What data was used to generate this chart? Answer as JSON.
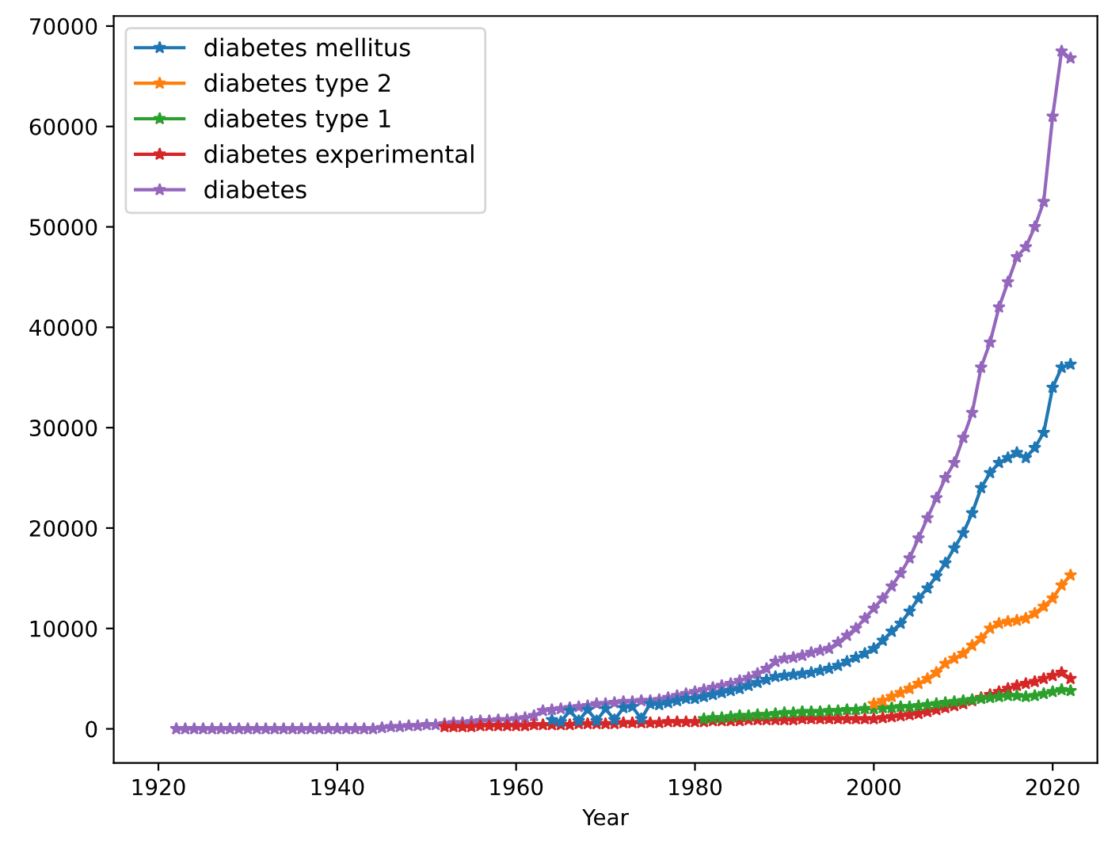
{
  "chart_data": {
    "type": "line",
    "xlabel": "Year",
    "marker": "star",
    "legend": "top left",
    "grid": false,
    "xlim": [
      1915,
      2025
    ],
    "xticks": [
      1920,
      1940,
      1960,
      1980,
      2000,
      2020
    ],
    "ylim": [
      -3400,
      71000
    ],
    "yticks": [
      0,
      10000,
      20000,
      30000,
      40000,
      50000,
      60000,
      70000
    ],
    "x": [
      1922,
      1923,
      1924,
      1925,
      1926,
      1927,
      1928,
      1929,
      1930,
      1931,
      1932,
      1933,
      1934,
      1935,
      1936,
      1937,
      1938,
      1939,
      1940,
      1941,
      1942,
      1943,
      1944,
      1945,
      1946,
      1947,
      1948,
      1949,
      1950,
      1951,
      1952,
      1953,
      1954,
      1955,
      1956,
      1957,
      1958,
      1959,
      1960,
      1961,
      1962,
      1963,
      1964,
      1965,
      1966,
      1967,
      1968,
      1969,
      1970,
      1971,
      1972,
      1973,
      1974,
      1975,
      1976,
      1977,
      1978,
      1979,
      1980,
      1981,
      1982,
      1983,
      1984,
      1985,
      1986,
      1987,
      1988,
      1989,
      1990,
      1991,
      1992,
      1993,
      1994,
      1995,
      1996,
      1997,
      1998,
      1999,
      2000,
      2001,
      2002,
      2003,
      2004,
      2005,
      2006,
      2007,
      2008,
      2009,
      2010,
      2011,
      2012,
      2013,
      2014,
      2015,
      2016,
      2017,
      2018,
      2019,
      2020,
      2021,
      2022
    ],
    "series": [
      {
        "name": "diabetes mellitus",
        "color": "#1f77b4",
        "values": [
          null,
          null,
          null,
          null,
          null,
          null,
          null,
          null,
          null,
          null,
          null,
          null,
          null,
          null,
          null,
          null,
          null,
          null,
          null,
          null,
          null,
          null,
          null,
          null,
          null,
          null,
          null,
          null,
          null,
          null,
          null,
          null,
          null,
          null,
          null,
          null,
          null,
          null,
          null,
          null,
          null,
          null,
          900,
          700,
          1800,
          800,
          1900,
          800,
          2000,
          900,
          2100,
          2200,
          1000,
          2500,
          2400,
          2600,
          2800,
          3000,
          3000,
          3200,
          3400,
          3600,
          3800,
          4000,
          4300,
          4600,
          4900,
          5200,
          5300,
          5400,
          5500,
          5600,
          5800,
          6000,
          6300,
          6700,
          7100,
          7500,
          8000,
          8800,
          9700,
          10500,
          11700,
          13000,
          14000,
          15200,
          16500,
          18000,
          19500,
          21500,
          24000,
          25500,
          26500,
          27000,
          27500,
          27000,
          28000,
          29500,
          34000,
          36000,
          36300
        ]
      },
      {
        "name": "diabetes type 2",
        "color": "#ff7f0e",
        "values": [
          null,
          null,
          null,
          null,
          null,
          null,
          null,
          null,
          null,
          null,
          null,
          null,
          null,
          null,
          null,
          null,
          null,
          null,
          null,
          null,
          null,
          null,
          null,
          null,
          null,
          null,
          null,
          null,
          null,
          null,
          null,
          null,
          null,
          null,
          null,
          null,
          null,
          null,
          null,
          null,
          null,
          null,
          null,
          null,
          null,
          null,
          null,
          null,
          null,
          null,
          null,
          null,
          null,
          null,
          null,
          null,
          null,
          null,
          null,
          null,
          null,
          null,
          null,
          null,
          null,
          null,
          null,
          null,
          null,
          null,
          null,
          null,
          null,
          null,
          null,
          null,
          null,
          null,
          2500,
          2800,
          3200,
          3600,
          4000,
          4500,
          5000,
          5600,
          6500,
          7000,
          7500,
          8300,
          9000,
          10000,
          10500,
          10700,
          10800,
          11000,
          11500,
          12200,
          13000,
          14300,
          15300
        ]
      },
      {
        "name": "diabetes type 1",
        "color": "#2ca02c",
        "values": [
          null,
          null,
          null,
          null,
          null,
          null,
          null,
          null,
          null,
          null,
          null,
          null,
          null,
          null,
          null,
          null,
          null,
          null,
          null,
          null,
          null,
          null,
          null,
          null,
          null,
          null,
          null,
          null,
          null,
          null,
          null,
          null,
          null,
          null,
          null,
          null,
          null,
          null,
          null,
          null,
          null,
          null,
          null,
          null,
          null,
          null,
          null,
          null,
          null,
          null,
          null,
          null,
          null,
          null,
          null,
          null,
          null,
          null,
          null,
          1000,
          1100,
          1100,
          1200,
          1300,
          1300,
          1400,
          1400,
          1500,
          1600,
          1600,
          1700,
          1700,
          1700,
          1800,
          1800,
          1900,
          1900,
          2000,
          2000,
          2100,
          2100,
          2200,
          2200,
          2300,
          2400,
          2500,
          2600,
          2700,
          2800,
          2900,
          3000,
          3100,
          3200,
          3300,
          3300,
          3200,
          3300,
          3500,
          3700,
          3900,
          3800
        ]
      },
      {
        "name": "diabetes experimental",
        "color": "#d62728",
        "values": [
          null,
          null,
          null,
          null,
          null,
          null,
          null,
          null,
          null,
          null,
          null,
          null,
          null,
          null,
          null,
          null,
          null,
          null,
          null,
          null,
          null,
          null,
          null,
          null,
          null,
          null,
          null,
          null,
          null,
          null,
          200,
          200,
          200,
          200,
          300,
          300,
          300,
          300,
          300,
          300,
          400,
          400,
          400,
          400,
          400,
          500,
          500,
          500,
          500,
          500,
          600,
          600,
          600,
          600,
          600,
          700,
          700,
          700,
          700,
          700,
          800,
          800,
          800,
          800,
          900,
          900,
          900,
          900,
          900,
          900,
          1000,
          1000,
          1000,
          1000,
          1000,
          1000,
          1000,
          1000,
          1000,
          1100,
          1200,
          1300,
          1400,
          1500,
          1700,
          1900,
          2100,
          2300,
          2500,
          2800,
          3100,
          3400,
          3700,
          4000,
          4300,
          4500,
          4700,
          5000,
          5300,
          5600,
          5000
        ]
      },
      {
        "name": "diabetes",
        "color": "#9467bd",
        "values": [
          0,
          0,
          0,
          0,
          0,
          0,
          0,
          0,
          0,
          0,
          0,
          0,
          0,
          0,
          0,
          0,
          0,
          0,
          0,
          0,
          0,
          0,
          0,
          100,
          200,
          200,
          300,
          300,
          400,
          400,
          500,
          600,
          600,
          700,
          800,
          800,
          900,
          900,
          1000,
          1100,
          1300,
          1800,
          1900,
          2000,
          2100,
          2200,
          2300,
          2500,
          2500,
          2600,
          2700,
          2700,
          2800,
          2800,
          2900,
          3100,
          3300,
          3500,
          3700,
          3900,
          4100,
          4300,
          4500,
          4800,
          5100,
          5500,
          6000,
          6700,
          7000,
          7100,
          7300,
          7600,
          7800,
          8000,
          8600,
          9300,
          10000,
          11000,
          12000,
          13000,
          14200,
          15500,
          17000,
          19000,
          21000,
          23000,
          25000,
          26500,
          29000,
          31500,
          36000,
          38500,
          42000,
          44500,
          47000,
          48000,
          50000,
          52500,
          61000,
          67500,
          66800
        ]
      }
    ]
  }
}
